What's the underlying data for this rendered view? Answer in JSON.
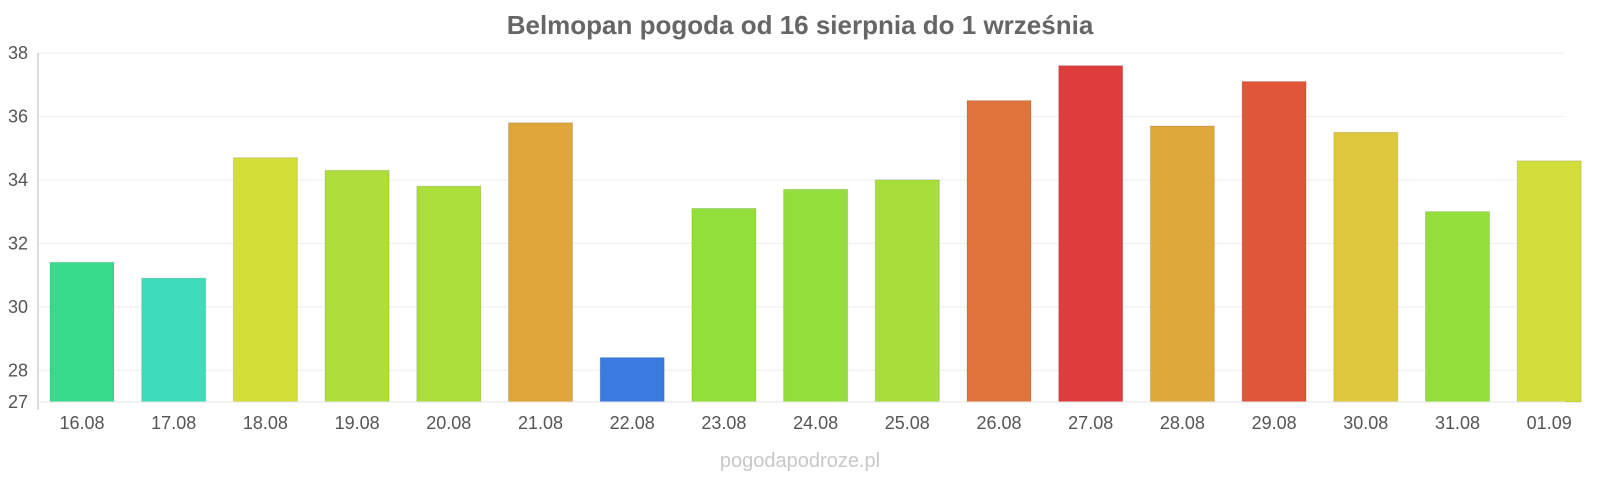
{
  "chart_data": {
    "type": "bar",
    "title": "Belmopan pogoda od 16 sierpnia do 1 września",
    "xlabel": "",
    "ylabel": "",
    "ylim": [
      27,
      38
    ],
    "yticks": [
      27,
      28,
      30,
      32,
      34,
      36,
      38
    ],
    "grid": true,
    "categories": [
      "16.08",
      "17.08",
      "18.08",
      "19.08",
      "20.08",
      "21.08",
      "22.08",
      "23.08",
      "24.08",
      "25.08",
      "26.08",
      "27.08",
      "28.08",
      "29.08",
      "30.08",
      "31.08",
      "01.09"
    ],
    "values": [
      31.4,
      30.9,
      34.7,
      34.3,
      33.8,
      35.8,
      28.4,
      33.1,
      33.7,
      34.0,
      36.5,
      37.6,
      35.7,
      37.1,
      35.5,
      33.0,
      34.6
    ],
    "colors": [
      "#2dd986",
      "#33dbb8",
      "#d2dc2e",
      "#abdb30",
      "#a8dc30",
      "#dda230",
      "#2f74dd",
      "#8cdc30",
      "#8edc30",
      "#a3dc30",
      "#dd6e30",
      "#dd3333",
      "#dda330",
      "#dd4d30",
      "#dcc530",
      "#8edc30",
      "#cfdc30"
    ]
  },
  "watermark": "pogodapodroze.pl"
}
